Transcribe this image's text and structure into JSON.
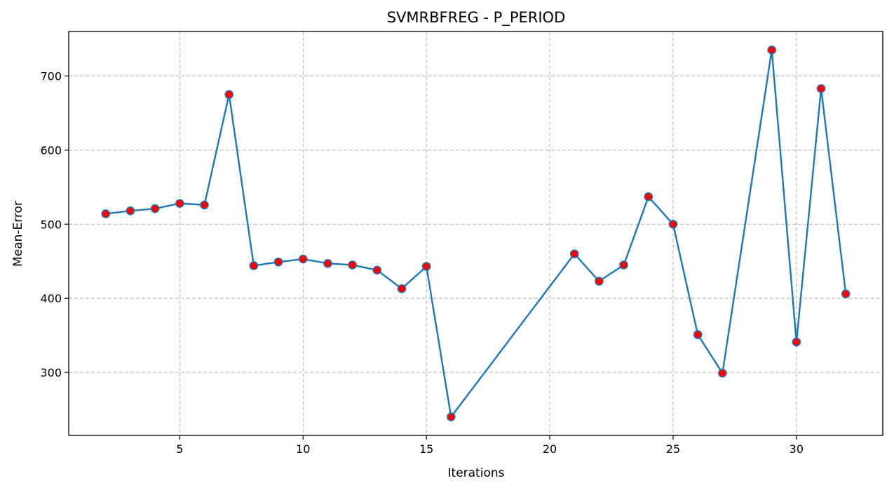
{
  "chart_data": {
    "type": "line",
    "title": "SVMRBFREG - P_PERIOD",
    "xlabel": "Iterations",
    "ylabel": "Mean-Error",
    "xlim": [
      0.5,
      33.5
    ],
    "ylim": [
      215,
      760
    ],
    "xticks": [
      5,
      10,
      15,
      20,
      25,
      30
    ],
    "yticks": [
      300,
      400,
      500,
      600,
      700
    ],
    "grid": true,
    "series": [
      {
        "x": [
          2,
          3,
          4,
          5,
          6,
          7,
          8,
          9,
          10,
          11,
          12,
          13,
          14,
          15,
          16,
          21,
          22,
          23,
          24,
          25,
          26,
          27,
          29,
          30,
          31,
          32
        ],
        "y": [
          514,
          518,
          521,
          528,
          526,
          675,
          444,
          449,
          453,
          447,
          445,
          438,
          413,
          443,
          240,
          460,
          423,
          445,
          537,
          500,
          351,
          299,
          735,
          341,
          683,
          406
        ]
      }
    ],
    "colors": {
      "line": "#1f77b4",
      "marker_fill": "#ff0000",
      "marker_edge": "#2a6ea8"
    }
  }
}
